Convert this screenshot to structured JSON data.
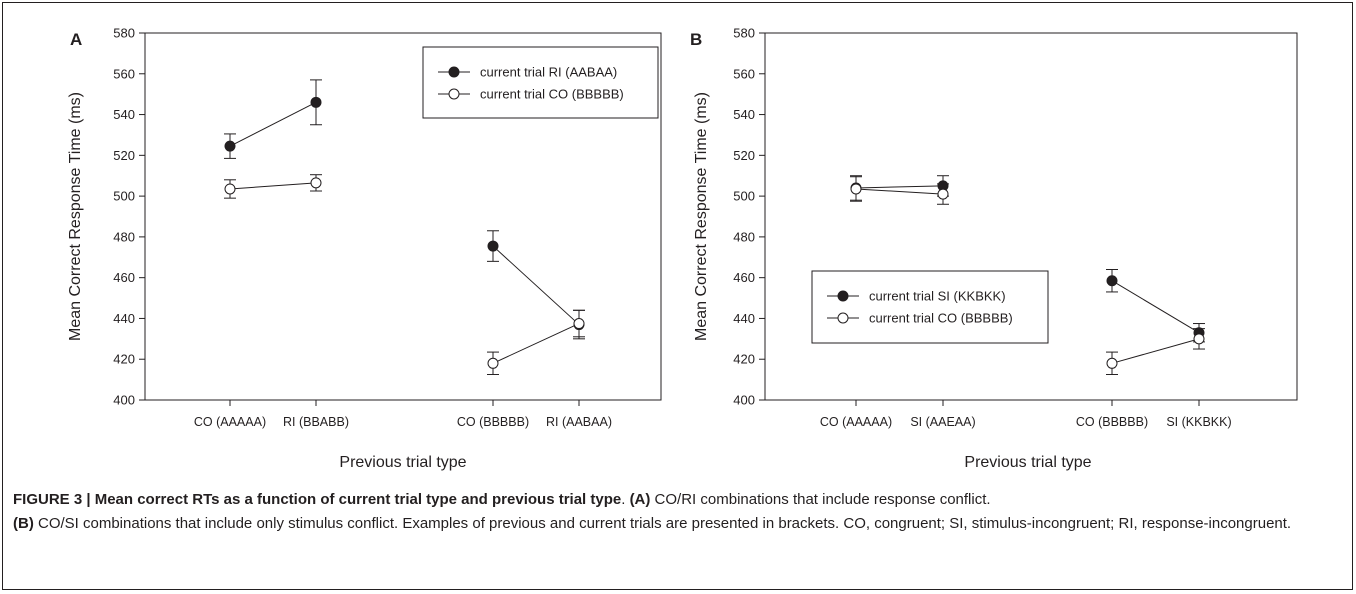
{
  "chart_data": [
    {
      "panel_label": "A",
      "type": "line",
      "xlabel": "Previous trial type",
      "ylabel": "Mean Correct Response Time (ms)",
      "ylim": [
        400,
        580
      ],
      "yticks": [
        400,
        420,
        440,
        460,
        480,
        500,
        520,
        540,
        560,
        580
      ],
      "categories": [
        "CO (AAAAA)",
        "RI (BBABB)",
        "CO (BBBBB)",
        "RI (AABAA)"
      ],
      "groups": [
        [
          0,
          1
        ],
        [
          2,
          3
        ]
      ],
      "legend_position": "top-right",
      "series": [
        {
          "name": "current trial RI (AABAA)",
          "marker": "filled-circle",
          "values": [
            524.5,
            546,
            475.5,
            437
          ],
          "errors": [
            6,
            11,
            7.5,
            7
          ]
        },
        {
          "name": "current trial CO (BBBBB)",
          "marker": "open-circle",
          "values": [
            503.5,
            506.5,
            418,
            437.5
          ],
          "errors": [
            4.5,
            4,
            5.5,
            6.5
          ]
        }
      ]
    },
    {
      "panel_label": "B",
      "type": "line",
      "xlabel": "Previous trial type",
      "ylabel": "Mean Correct Response Time (ms)",
      "ylim": [
        400,
        580
      ],
      "yticks": [
        400,
        420,
        440,
        460,
        480,
        500,
        520,
        540,
        560,
        580
      ],
      "categories": [
        "CO (AAAAA)",
        "SI (AAEAA)",
        "CO (BBBBB)",
        "SI (KKBKK)"
      ],
      "groups": [
        [
          0,
          1
        ],
        [
          2,
          3
        ]
      ],
      "legend_position": "lower-left",
      "series": [
        {
          "name": "current trial SI (KKBKK)",
          "marker": "filled-circle",
          "values": [
            504,
            505,
            458.5,
            433
          ],
          "errors": [
            6,
            5,
            5.5,
            4.5
          ]
        },
        {
          "name": "current trial CO (BBBBB)",
          "marker": "open-circle",
          "values": [
            503.5,
            501,
            418,
            430
          ],
          "errors": [
            6,
            5,
            5.5,
            5
          ]
        }
      ]
    }
  ],
  "caption": {
    "figure": "FIGURE 3 | Mean correct RTs as a function of current trial type and previous trial type",
    "after_title": ". ",
    "a_tag": "(A)",
    "a_text": " CO/RI combinations that include response conflict.",
    "b_tag": "(B)",
    "b_text": " CO/SI combinations that include only stimulus conflict. Examples of previous and current trials are presented in brackets. CO, congruent; SI, stimulus-incongruent; RI, response-incongruent."
  },
  "colors": {
    "ink": "#231f20",
    "background": "#ffffff"
  }
}
